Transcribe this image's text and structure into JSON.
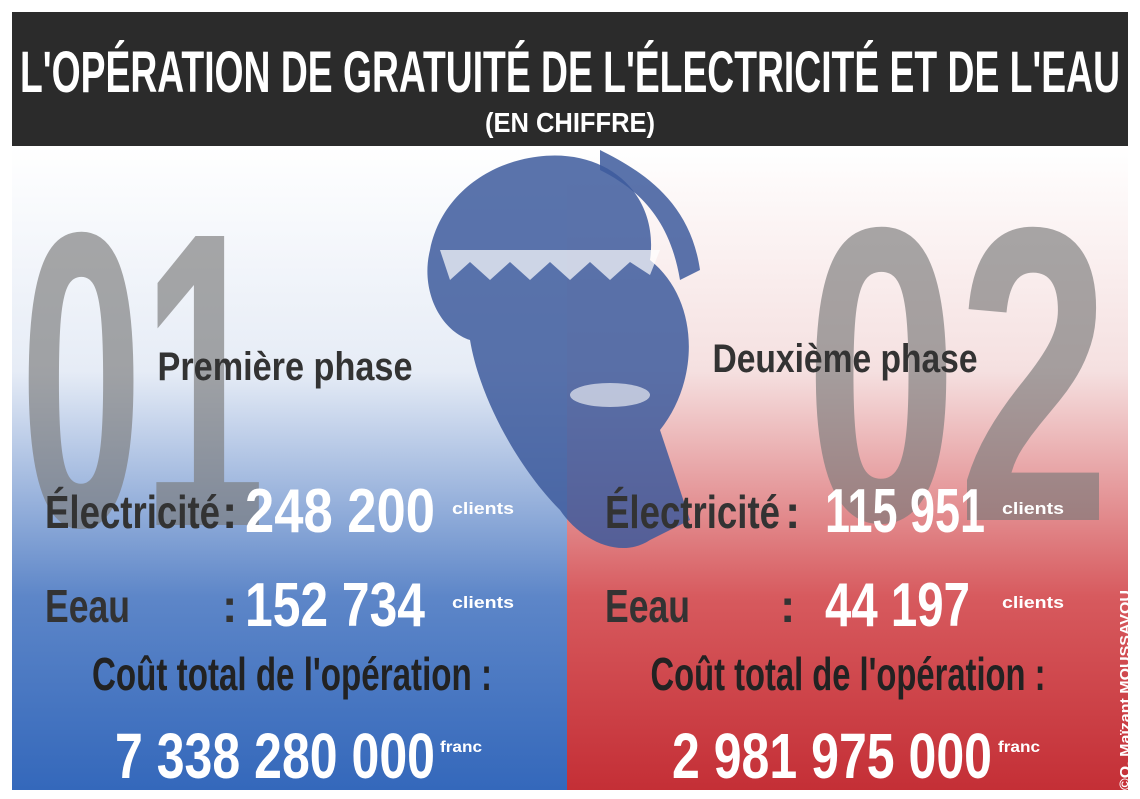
{
  "header": {
    "title": "L'OPÉRATION DE GRATUITÉ DE L'ÉLECTRICITÉ ET DE L'EAU",
    "subtitle": "(EN CHIFFRE)"
  },
  "phases": [
    {
      "number": "01",
      "title": "Première phase",
      "rows": [
        {
          "label": "Électricité",
          "separator": ":",
          "value": "248 200",
          "unit": "clients"
        },
        {
          "label": "Eeau",
          "separator": ":",
          "value": "152 734",
          "unit": "clients"
        }
      ],
      "cost_label": "Coût total de l'opération :",
      "cost": "7 338 280 000",
      "cost_unit": "franc"
    },
    {
      "number": "02",
      "title": "Deuxième phase",
      "rows": [
        {
          "label": "Électricité",
          "separator": ":",
          "value": "115 951",
          "unit": "clients"
        },
        {
          "label": "Eeau",
          "separator": ":",
          "value": "44 197",
          "unit": "clients"
        }
      ],
      "cost_label": "Coût total de l'opération :",
      "cost": "2 981 975 000",
      "cost_unit": "franc"
    }
  ],
  "credit": "©O. Maïzant MOUSSAVOU"
}
